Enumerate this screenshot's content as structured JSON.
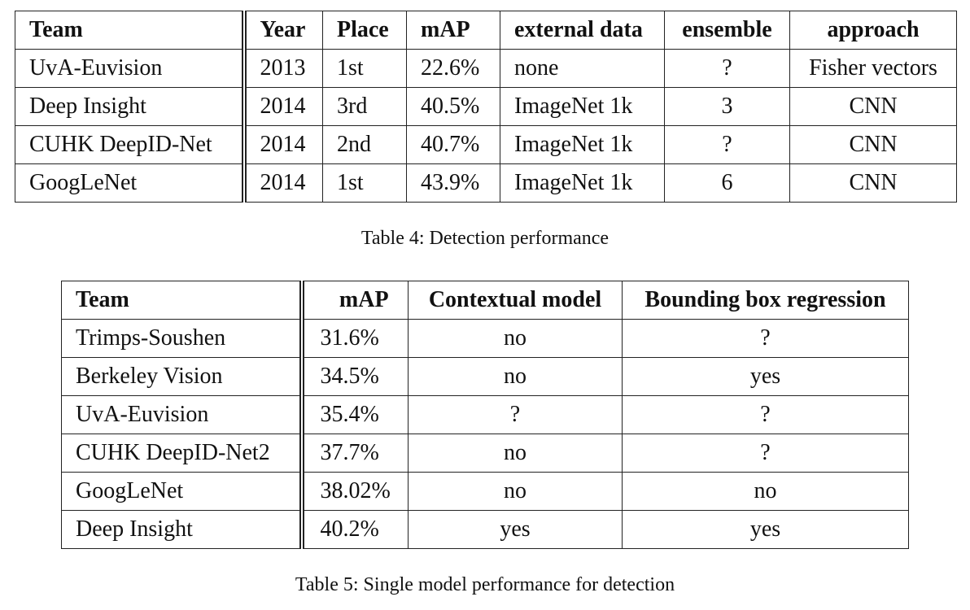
{
  "table4": {
    "headers": [
      "Team",
      "Year",
      "Place",
      "mAP",
      "external data",
      "ensemble",
      "approach"
    ],
    "rows": [
      [
        "UvA-Euvision",
        "2013",
        "1st",
        "22.6%",
        "none",
        "?",
        "Fisher vectors"
      ],
      [
        "Deep Insight",
        "2014",
        "3rd",
        "40.5%",
        "ImageNet 1k",
        "3",
        "CNN"
      ],
      [
        "CUHK DeepID-Net",
        "2014",
        "2nd",
        "40.7%",
        "ImageNet 1k",
        "?",
        "CNN"
      ],
      [
        "GoogLeNet",
        "2014",
        "1st",
        "43.9%",
        "ImageNet 1k",
        "6",
        "CNN"
      ]
    ],
    "caption": "Table 4: Detection performance"
  },
  "table5": {
    "headers": [
      "Team",
      "mAP",
      "Contextual model",
      "Bounding box regression"
    ],
    "rows": [
      [
        "Trimps-Soushen",
        "31.6%",
        "no",
        "?"
      ],
      [
        "Berkeley Vision",
        "34.5%",
        "no",
        "yes"
      ],
      [
        "UvA-Euvision",
        "35.4%",
        "?",
        "?"
      ],
      [
        "CUHK DeepID-Net2",
        "37.7%",
        "no",
        "?"
      ],
      [
        "GoogLeNet",
        "38.02%",
        "no",
        "no"
      ],
      [
        "Deep Insight",
        "40.2%",
        "yes",
        "yes"
      ]
    ],
    "caption": "Table 5: Single model performance for detection"
  }
}
